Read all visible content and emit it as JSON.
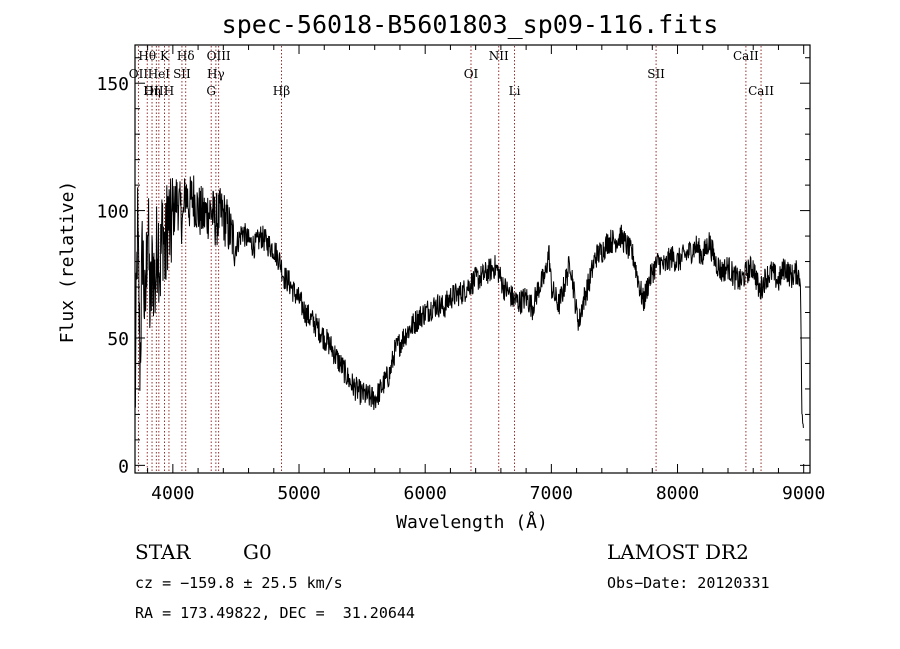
{
  "chart_data": {
    "type": "line",
    "title": "spec-56018-B5601803_sp09-116.fits",
    "xlabel": "Wavelength (Å)",
    "ylabel": "Flux (relative)",
    "xlim": [
      3700,
      9050
    ],
    "ylim": [
      -3,
      165
    ],
    "xticks": [
      4000,
      5000,
      6000,
      7000,
      8000,
      9000
    ],
    "yticks": [
      0,
      50,
      100,
      150
    ],
    "grid": false,
    "series": [
      {
        "x": [
          3700,
          3720,
          3740,
          3760,
          3780,
          3800,
          3820,
          3840,
          3860,
          3880,
          3900,
          3920,
          3940,
          3960,
          3980,
          4000,
          4030,
          4060,
          4080,
          4100,
          4130,
          4160,
          4200,
          4250,
          4300,
          4340,
          4370,
          4400,
          4450,
          4500,
          4550,
          4600,
          4650,
          4700,
          4750,
          4800,
          4850,
          4880,
          4920,
          4960,
          5000,
          5050,
          5100,
          5150,
          5200,
          5250,
          5300,
          5350,
          5400,
          5450,
          5500,
          5550,
          5600,
          5640,
          5680,
          5720,
          5760,
          5800,
          5850,
          5900,
          5950,
          6000,
          6050,
          6100,
          6150,
          6200,
          6250,
          6300,
          6350,
          6400,
          6450,
          6500,
          6550,
          6580,
          6620,
          6660,
          6700,
          6750,
          6800,
          6850,
          6900,
          6950,
          6980,
          7000,
          7030,
          7060,
          7100,
          7150,
          7200,
          7220,
          7250,
          7300,
          7350,
          7400,
          7450,
          7500,
          7550,
          7600,
          7650,
          7700,
          7730,
          7760,
          7800,
          7850,
          7900,
          7950,
          8000,
          8050,
          8100,
          8150,
          8200,
          8250,
          8300,
          8350,
          8400,
          8450,
          8500,
          8550,
          8600,
          8650,
          8700,
          8750,
          8800,
          8850,
          8900,
          8950,
          8975,
          8985,
          9000
        ],
        "y": [
          20,
          95,
          40,
          88,
          55,
          100,
          60,
          80,
          70,
          92,
          78,
          95,
          80,
          100,
          90,
          98,
          105,
          100,
          95,
          108,
          102,
          106,
          100,
          98,
          100,
          96,
          98,
          98,
          92,
          86,
          92,
          88,
          86,
          90,
          87,
          85,
          80,
          74,
          72,
          68,
          65,
          60,
          57,
          54,
          50,
          47,
          42,
          38,
          33,
          30,
          28,
          27,
          26,
          29,
          33,
          36,
          45,
          48,
          52,
          55,
          58,
          60,
          62,
          63,
          62,
          66,
          67,
          68,
          71,
          73,
          74,
          76,
          78,
          76,
          70,
          68,
          65,
          64,
          66,
          62,
          70,
          74,
          84,
          70,
          66,
          63,
          70,
          80,
          60,
          56,
          64,
          72,
          82,
          84,
          88,
          88,
          90,
          86,
          82,
          70,
          64,
          70,
          76,
          80,
          78,
          82,
          80,
          82,
          84,
          86,
          82,
          88,
          80,
          76,
          78,
          74,
          72,
          76,
          78,
          68,
          74,
          76,
          72,
          78,
          74,
          76,
          72,
          22,
          12
        ]
      }
    ],
    "line_markers": [
      {
        "label": "Hθ",
        "x": 3797,
        "row": 1
      },
      {
        "label": "OII",
        "x": 3727,
        "row": 2
      },
      {
        "label": "OIII",
        "x": 3869,
        "row": 3
      },
      {
        "label": "Hη",
        "x": 3835,
        "row": 3
      },
      {
        "label": "HeI",
        "x": 3889,
        "row": 2
      },
      {
        "label": "K",
        "x": 3934,
        "row": 1
      },
      {
        "label": "H",
        "x": 3969,
        "row": 3
      },
      {
        "label": "SII",
        "x": 4072,
        "row": 2
      },
      {
        "label": "Hδ",
        "x": 4102,
        "row": 1
      },
      {
        "label": "OIII",
        "x": 4363,
        "row": 1
      },
      {
        "label": "Hγ",
        "x": 4341,
        "row": 2
      },
      {
        "label": "G",
        "x": 4304,
        "row": 3
      },
      {
        "label": "Hβ",
        "x": 4861,
        "row": 3
      },
      {
        "label": "OI",
        "x": 6363,
        "row": 2
      },
      {
        "label": "NII",
        "x": 6583,
        "row": 1
      },
      {
        "label": "Li",
        "x": 6708,
        "row": 3
      },
      {
        "label": "SII",
        "x": 7830,
        "row": 2
      },
      {
        "label": "CaII",
        "x": 8542,
        "row": 1
      },
      {
        "label": "CaII",
        "x": 8662,
        "row": 3
      }
    ]
  },
  "info": {
    "object_class": "STAR",
    "subclass": "G0",
    "survey": "LAMOST DR2",
    "cz": "cz = −159.8 ± 25.5 km/s",
    "obs_date": "Obs−Date: 20120331",
    "coords": "RA = 173.49822, DEC =  31.20644"
  }
}
